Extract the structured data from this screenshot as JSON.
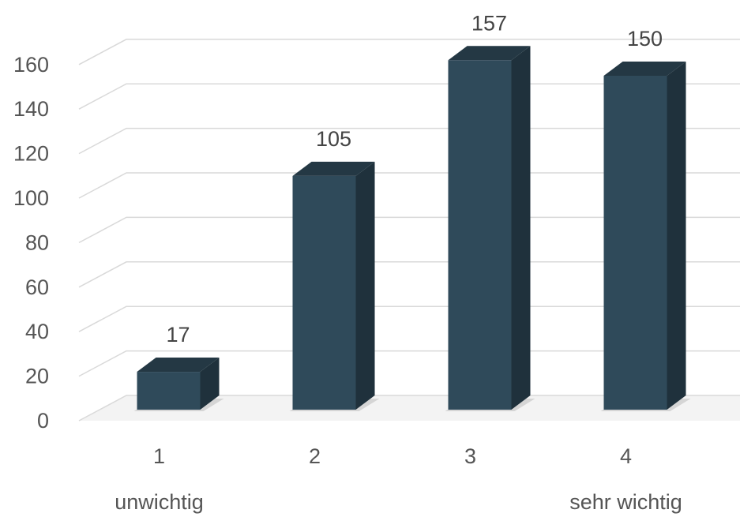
{
  "chart_data": {
    "type": "bar",
    "style": "3d-column",
    "categories": [
      "1",
      "2",
      "3",
      "4"
    ],
    "values": [
      17,
      105,
      157,
      150
    ],
    "ylim": [
      0,
      160
    ],
    "yticks": [
      0,
      20,
      40,
      60,
      80,
      100,
      120,
      140,
      160
    ],
    "grid": true,
    "legend": "none",
    "bar_color": "#2f4a5a",
    "annotations": [
      {
        "category": "1",
        "text": "unwichtig"
      },
      {
        "category": "4",
        "text": "sehr wichtig"
      }
    ]
  }
}
